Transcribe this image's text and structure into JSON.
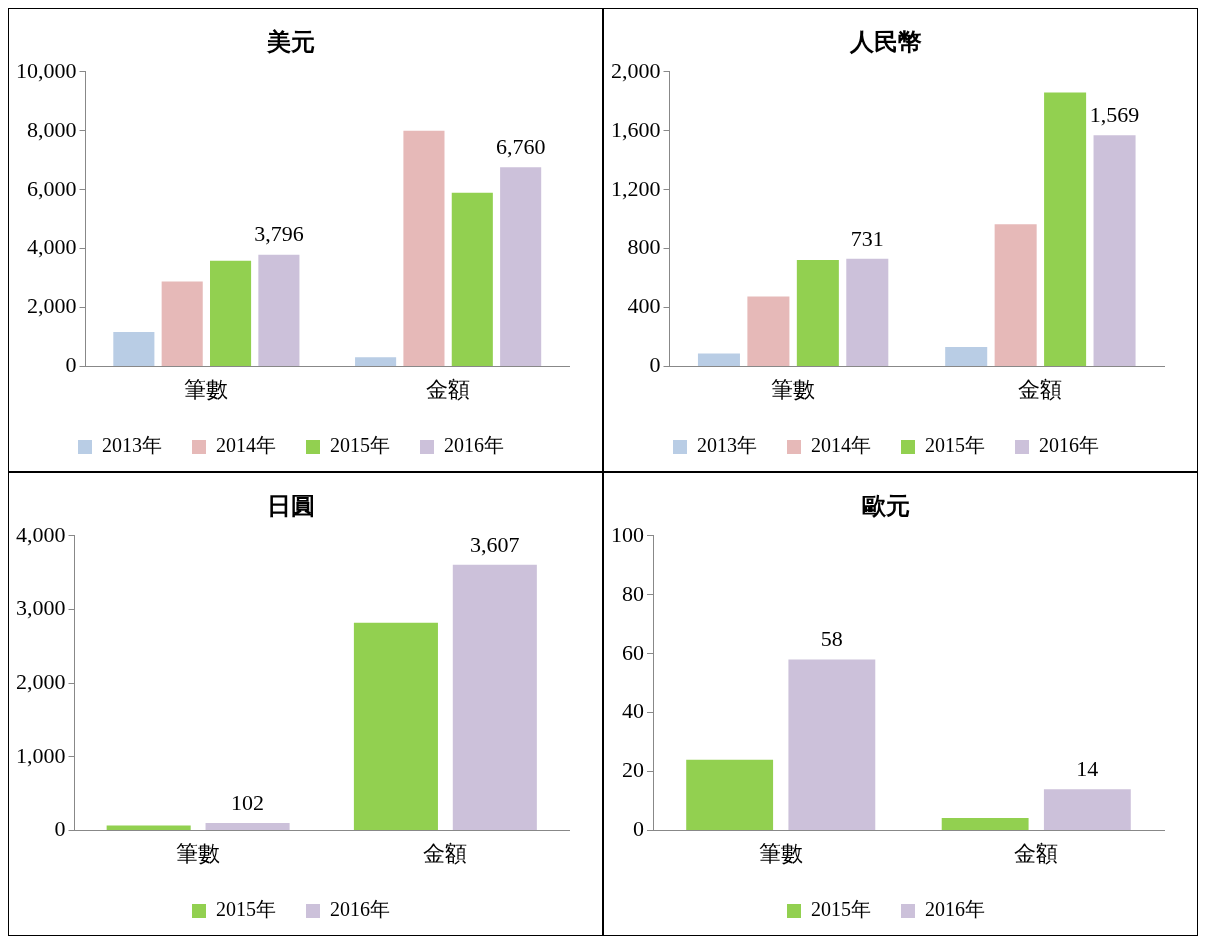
{
  "chart_data": [
    {
      "type": "bar",
      "title": "美元",
      "categories": [
        "筆數",
        "金額"
      ],
      "series": [
        {
          "name": "2013年",
          "color": "#b9cde5",
          "values": [
            1170,
            320
          ]
        },
        {
          "name": "2014年",
          "color": "#e6b9b8",
          "values": [
            2890,
            8000
          ]
        },
        {
          "name": "2015年",
          "color": "#92d050",
          "values": [
            3590,
            5900
          ]
        },
        {
          "name": "2016年",
          "color": "#ccc1da",
          "values": [
            3796,
            6760
          ],
          "value_labels": [
            "3,796",
            "6,760"
          ]
        }
      ],
      "ylim": [
        0,
        10000
      ],
      "yticks": [
        0,
        {
          "value": 2000,
          "label": "2,000"
        },
        {
          "value": 4000,
          "label": "4,000"
        },
        {
          "value": 6000,
          "label": "6,000"
        },
        {
          "value": 8000,
          "label": "8,000"
        },
        {
          "value": 10000,
          "label": "10,000"
        }
      ],
      "legend": "bottom"
    },
    {
      "type": "bar",
      "title": "人民幣",
      "categories": [
        "筆數",
        "金額"
      ],
      "series": [
        {
          "name": "2013年",
          "color": "#b9cde5",
          "values": [
            89,
            133
          ]
        },
        {
          "name": "2014年",
          "color": "#e6b9b8",
          "values": [
            476,
            965
          ]
        },
        {
          "name": "2015年",
          "color": "#92d050",
          "values": [
            724,
            1860
          ]
        },
        {
          "name": "2016年",
          "color": "#ccc1da",
          "values": [
            731,
            1569
          ],
          "value_labels": [
            "731",
            "1,569"
          ]
        }
      ],
      "ylim": [
        0,
        2000
      ],
      "yticks": [
        0,
        400,
        800,
        {
          "value": 1200,
          "label": "1,200"
        },
        {
          "value": 1600,
          "label": "1,600"
        },
        {
          "value": 2000,
          "label": "2,000"
        }
      ],
      "legend": "bottom"
    },
    {
      "type": "bar",
      "title": "日圓",
      "categories": [
        "筆數",
        "金額"
      ],
      "series": [
        {
          "name": "2015年",
          "color": "#92d050",
          "values": [
            70,
            2820
          ]
        },
        {
          "name": "2016年",
          "color": "#ccc1da",
          "values": [
            102,
            3607
          ],
          "value_labels": [
            "102",
            "3,607"
          ]
        }
      ],
      "ylim": [
        0,
        4000
      ],
      "yticks": [
        0,
        {
          "value": 1000,
          "label": "1,000"
        },
        {
          "value": 2000,
          "label": "2,000"
        },
        {
          "value": 3000,
          "label": "3,000"
        },
        {
          "value": 4000,
          "label": "4,000"
        }
      ],
      "legend": "bottom"
    },
    {
      "type": "bar",
      "title": "歐元",
      "categories": [
        "筆數",
        "金額"
      ],
      "series": [
        {
          "name": "2015年",
          "color": "#92d050",
          "values": [
            24,
            4.3
          ]
        },
        {
          "name": "2016年",
          "color": "#ccc1da",
          "values": [
            58,
            14
          ],
          "value_labels": [
            "58",
            "14"
          ]
        }
      ],
      "ylim": [
        0,
        100
      ],
      "yticks": [
        0,
        20,
        40,
        60,
        80,
        100
      ],
      "legend": "bottom"
    }
  ]
}
